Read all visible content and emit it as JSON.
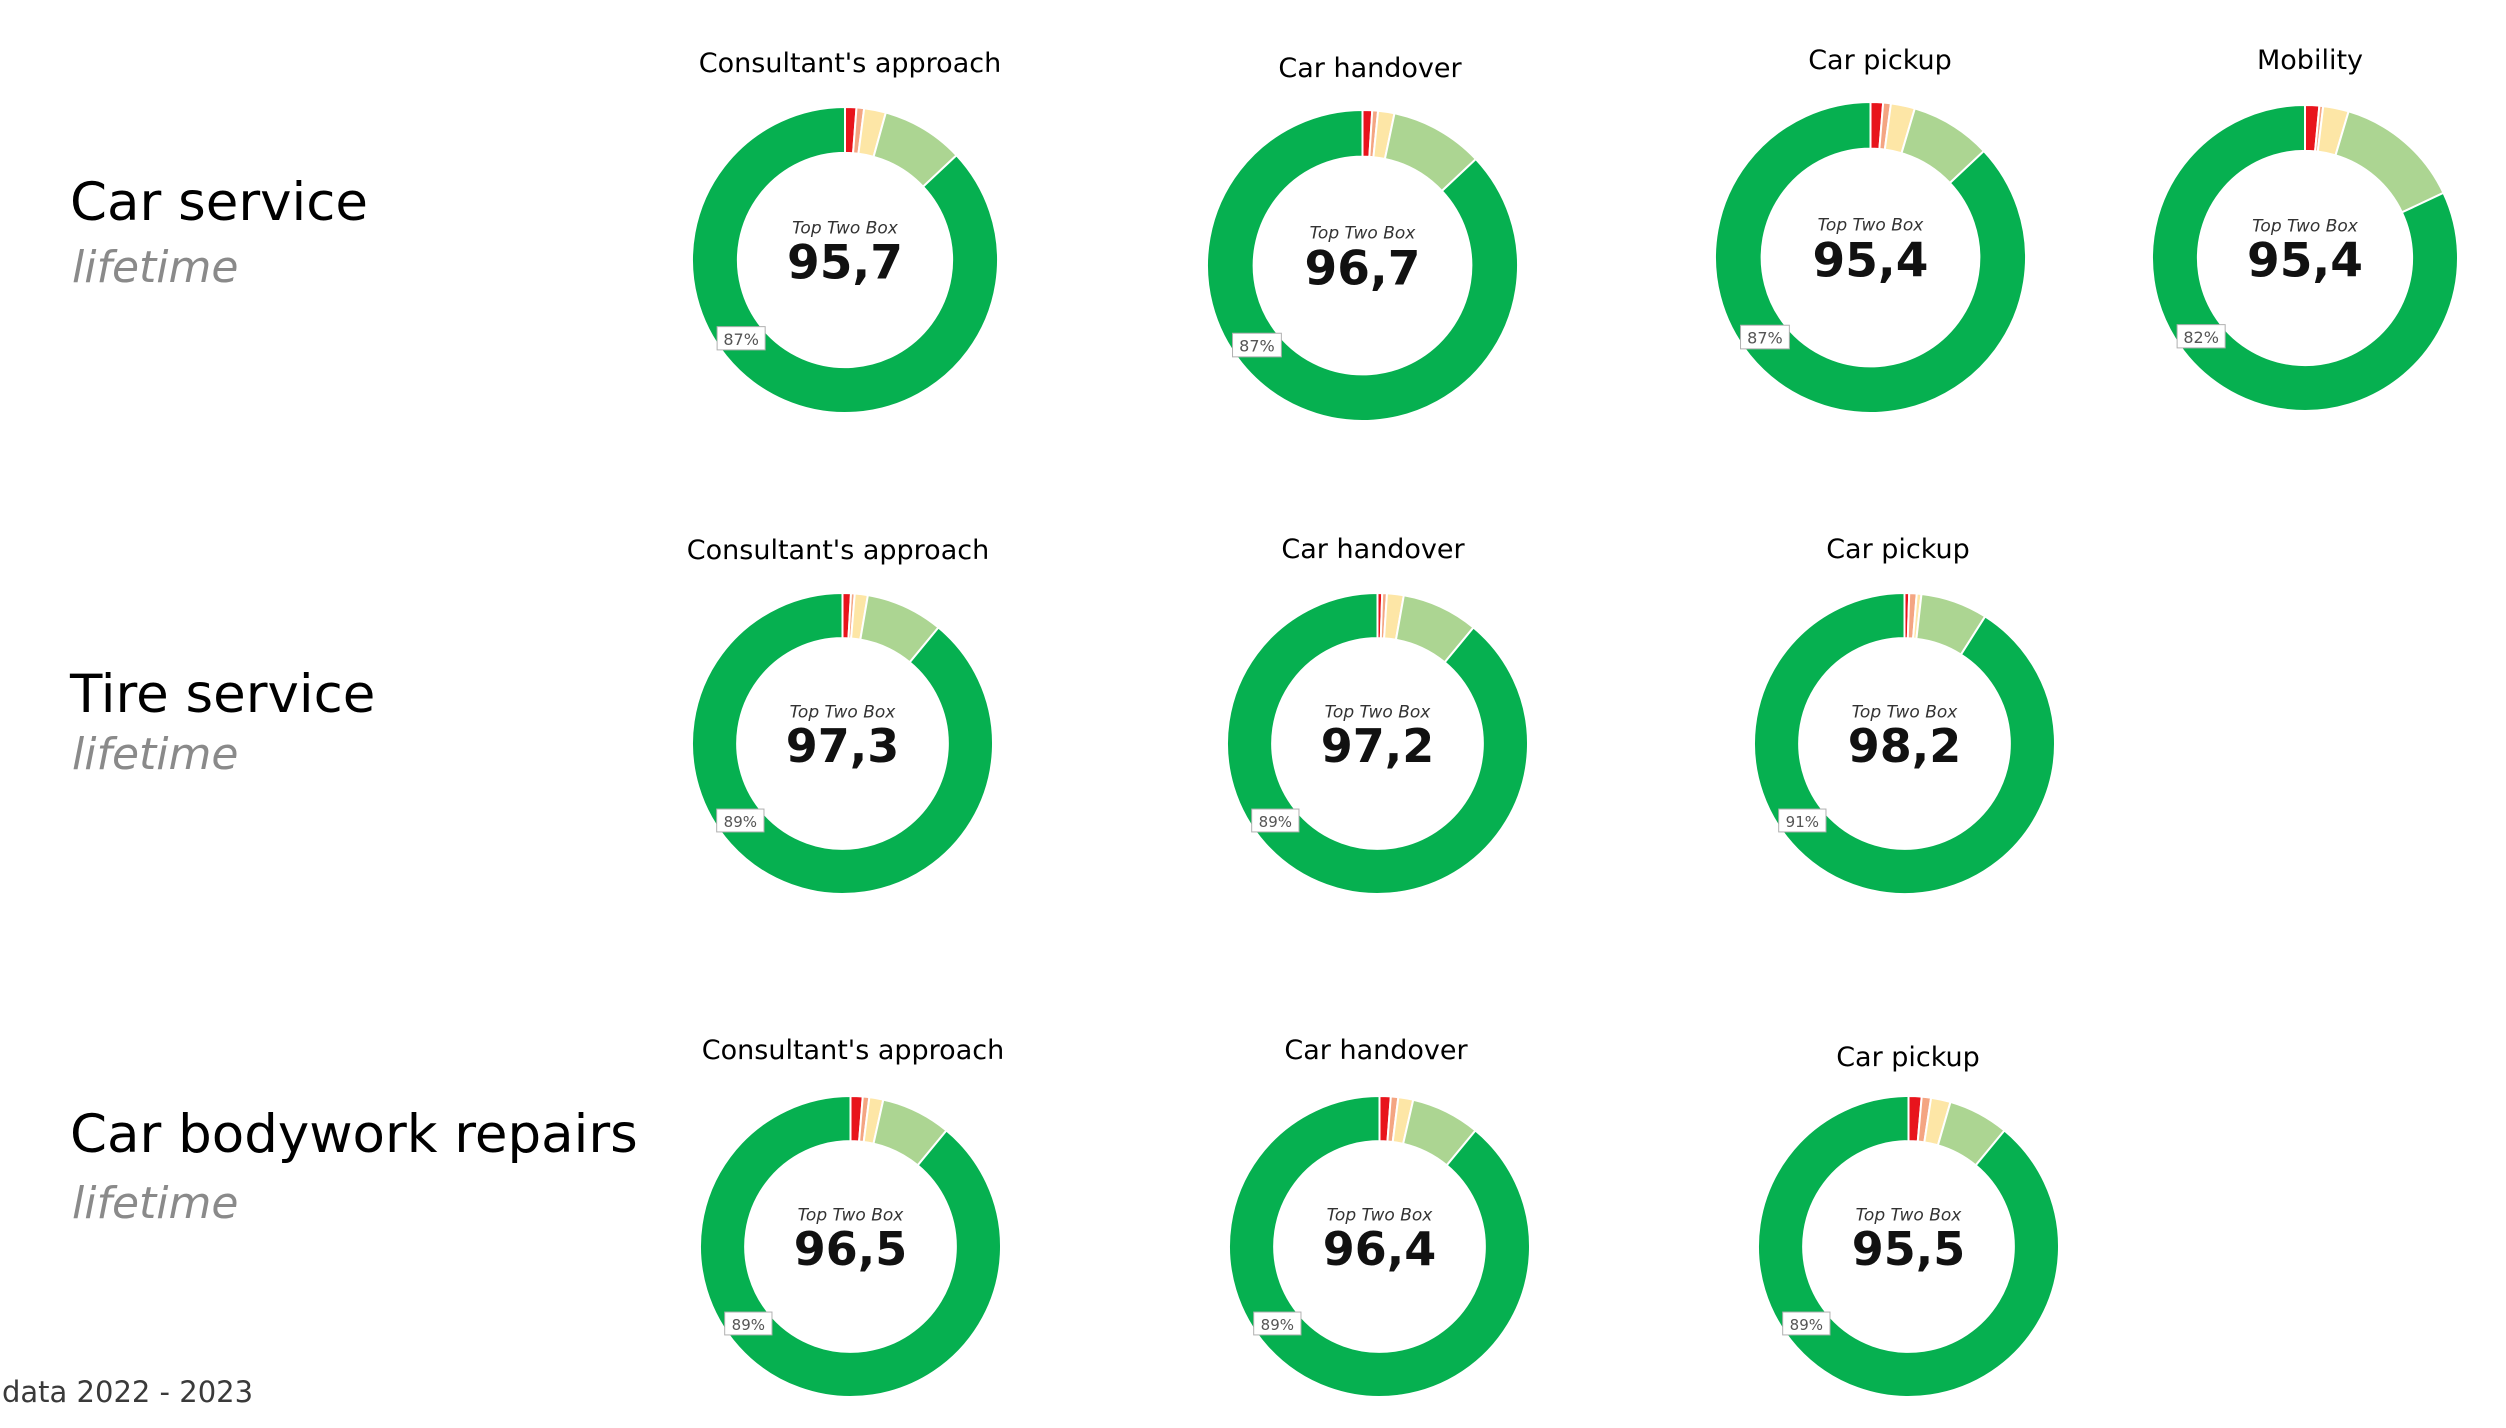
{
  "footnote": "data 2022 - 2023",
  "colors": {
    "very_dissatisfied": "#e8141c",
    "dissatisfied": "#f4a582",
    "neutral": "#fde6a6",
    "satisfied": "#acd592",
    "very_satisfied": "#06b050",
    "background": "#ffffff"
  },
  "center_label": "Top Two Box",
  "sections": [
    {
      "title": "Car service",
      "subtitle": "lifetime"
    },
    {
      "title": "Tire service",
      "subtitle": "lifetime"
    },
    {
      "title": "Car bodywork repairs",
      "subtitle": "lifetime"
    }
  ],
  "chart_data": [
    {
      "type": "pie",
      "section": "Car service",
      "title": "Consultant's approach",
      "center_label": "Top Two Box",
      "center_value": "95,7",
      "segments": [
        1.2,
        0.8,
        2.3,
        8.7,
        87
      ],
      "segment_label": "87%"
    },
    {
      "type": "pie",
      "section": "Car service",
      "title": "Car handover",
      "center_label": "Top Two Box",
      "center_value": "96,7",
      "segments": [
        1.0,
        0.6,
        1.7,
        9.7,
        87
      ],
      "segment_label": "87%"
    },
    {
      "type": "pie",
      "section": "Car service",
      "title": "Car pickup",
      "center_label": "Top Two Box",
      "center_value": "95,4",
      "segments": [
        1.3,
        0.8,
        2.5,
        8.4,
        87
      ],
      "segment_label": "87%"
    },
    {
      "type": "pie",
      "section": "Car service",
      "title": "Mobility",
      "center_label": "Top Two Box",
      "center_value": "95,4",
      "segments": [
        1.5,
        0.4,
        2.7,
        13.4,
        82
      ],
      "segment_label": "82%"
    },
    {
      "type": "pie",
      "section": "Tire service",
      "title": "Consultant's approach",
      "center_label": "Top Two Box",
      "center_value": "97,3",
      "segments": [
        0.9,
        0.4,
        1.4,
        8.3,
        89
      ],
      "segment_label": "89%"
    },
    {
      "type": "pie",
      "section": "Tire service",
      "title": "Car handover",
      "center_label": "Top Two Box",
      "center_value": "97,2",
      "segments": [
        0.5,
        0.5,
        1.8,
        8.2,
        89
      ],
      "segment_label": "89%"
    },
    {
      "type": "pie",
      "section": "Tire service",
      "title": "Car pickup",
      "center_label": "Top Two Box",
      "center_value": "98,2",
      "segments": [
        0.5,
        0.8,
        0.5,
        7.2,
        91
      ],
      "segment_label": "91%"
    },
    {
      "type": "pie",
      "section": "Car bodywork repairs",
      "title": "Consultant's approach",
      "center_label": "Top Two Box",
      "center_value": "96,5",
      "segments": [
        1.3,
        0.7,
        1.5,
        7.5,
        89
      ],
      "segment_label": "89%"
    },
    {
      "type": "pie",
      "section": "Car bodywork repairs",
      "title": "Car handover",
      "center_label": "Top Two Box",
      "center_value": "96,4",
      "segments": [
        1.2,
        0.8,
        1.6,
        7.4,
        89
      ],
      "segment_label": "89%"
    },
    {
      "type": "pie",
      "section": "Car bodywork repairs",
      "title": "Car pickup",
      "center_label": "Top Two Box",
      "center_value": "95,5",
      "segments": [
        1.4,
        1.0,
        2.1,
        6.5,
        89
      ],
      "segment_label": "89%"
    }
  ]
}
